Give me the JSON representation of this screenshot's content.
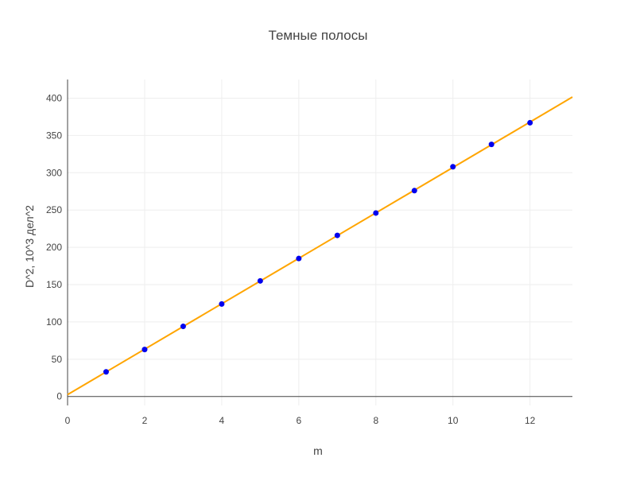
{
  "chart_data": {
    "type": "scatter",
    "title": "Темные полосы",
    "xlabel": "m",
    "ylabel": "D^2, 10^3 дел^2",
    "xlim": [
      0,
      13.1
    ],
    "ylim": [
      -12,
      425
    ],
    "x_ticks": [
      0,
      2,
      4,
      6,
      8,
      10,
      12
    ],
    "y_ticks": [
      0,
      50,
      100,
      150,
      200,
      250,
      300,
      350,
      400
    ],
    "grid": true,
    "legend": "none",
    "colors": {
      "points": "#0000ee",
      "fit_line": "#ffa500"
    },
    "series": [
      {
        "mode": "markers",
        "x": [
          1,
          2,
          3,
          4,
          5,
          6,
          7,
          8,
          9,
          10,
          11,
          12
        ],
        "y": [
          33,
          63,
          94,
          124,
          155,
          185,
          216,
          246,
          276,
          308,
          338,
          367
        ]
      },
      {
        "mode": "line",
        "x": [
          0,
          13.1
        ],
        "y": [
          2.5,
          401.5
        ]
      }
    ]
  }
}
